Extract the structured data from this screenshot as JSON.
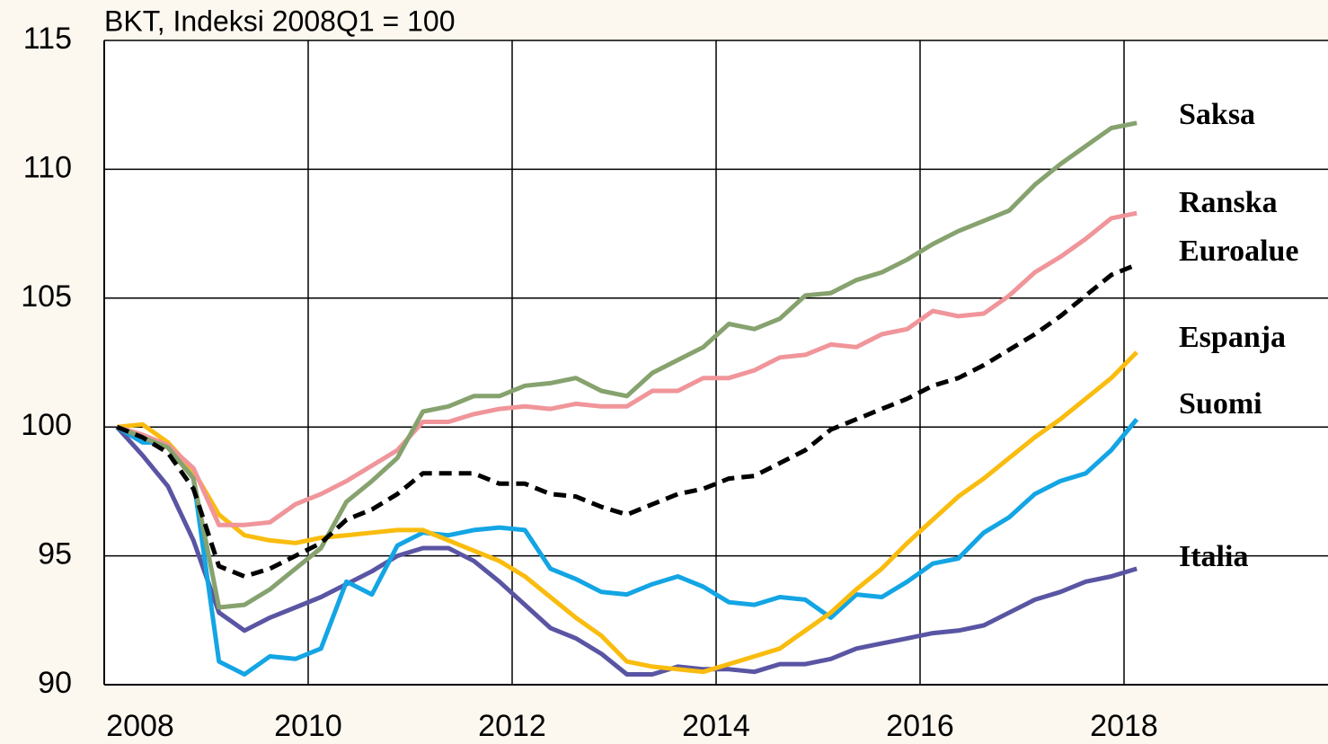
{
  "chart_data": {
    "type": "line",
    "title": "BKT, Indeksi 2008Q1 = 100",
    "x": [
      2008.125,
      2008.375,
      2008.625,
      2008.875,
      2009.125,
      2009.375,
      2009.625,
      2009.875,
      2010.125,
      2010.375,
      2010.625,
      2010.875,
      2011.125,
      2011.375,
      2011.625,
      2011.875,
      2012.125,
      2012.375,
      2012.625,
      2012.875,
      2013.125,
      2013.375,
      2013.625,
      2013.875,
      2014.125,
      2014.375,
      2014.625,
      2014.875,
      2015.125,
      2015.375,
      2015.625,
      2015.875,
      2016.125,
      2016.375,
      2016.625,
      2016.875,
      2017.125,
      2017.375,
      2017.625,
      2017.875,
      2018.125
    ],
    "series": [
      {
        "name": "Italia",
        "color": "#5a55a3",
        "values": [
          100,
          98.9,
          97.7,
          95.6,
          92.8,
          92.1,
          92.6,
          93.0,
          93.4,
          93.9,
          94.4,
          95.0,
          95.3,
          95.3,
          94.8,
          94.0,
          93.1,
          92.2,
          91.8,
          91.2,
          90.4,
          90.4,
          90.7,
          90.6,
          90.6,
          90.5,
          90.8,
          90.8,
          91.0,
          91.4,
          91.6,
          91.8,
          92.0,
          92.1,
          92.3,
          92.8,
          93.3,
          93.6,
          94.0,
          94.2,
          94.5
        ]
      },
      {
        "name": "Suomi",
        "color": "#13a5e4",
        "values": [
          100,
          99.4,
          99.4,
          98.0,
          90.9,
          90.4,
          91.1,
          91.0,
          91.4,
          94.0,
          93.5,
          95.4,
          95.9,
          95.8,
          96.0,
          96.1,
          96.0,
          94.5,
          94.1,
          93.6,
          93.5,
          93.9,
          94.2,
          93.8,
          93.2,
          93.1,
          93.4,
          93.3,
          92.6,
          93.5,
          93.4,
          94.0,
          94.7,
          94.9,
          95.9,
          96.5,
          97.4,
          97.9,
          98.2,
          99.1,
          100.3
        ]
      },
      {
        "name": "Espanja",
        "color": "#f9bc0f",
        "values": [
          100,
          100.1,
          99.4,
          98.3,
          96.6,
          95.8,
          95.6,
          95.5,
          95.7,
          95.8,
          95.9,
          96.0,
          96.0,
          95.6,
          95.2,
          94.8,
          94.2,
          93.4,
          92.6,
          91.9,
          90.9,
          90.7,
          90.6,
          90.5,
          90.8,
          91.1,
          91.4,
          92.1,
          92.8,
          93.7,
          94.5,
          95.5,
          96.4,
          97.3,
          98.0,
          98.8,
          99.6,
          100.3,
          101.1,
          101.9,
          102.9
        ]
      },
      {
        "name": "Ranska",
        "color": "#f0959a",
        "values": [
          100,
          99.7,
          99.3,
          98.4,
          96.2,
          96.2,
          96.3,
          97.0,
          97.4,
          97.9,
          98.5,
          99.1,
          100.2,
          100.2,
          100.5,
          100.7,
          100.8,
          100.7,
          100.9,
          100.8,
          100.8,
          101.4,
          101.4,
          101.9,
          101.9,
          102.2,
          102.7,
          102.8,
          103.2,
          103.1,
          103.6,
          103.8,
          104.5,
          104.3,
          104.4,
          105.1,
          106.0,
          106.6,
          107.3,
          108.1,
          108.3
        ]
      },
      {
        "name": "Saksa",
        "color": "#86a26e",
        "values": [
          100,
          99.6,
          99.2,
          98.0,
          93.0,
          93.1,
          93.7,
          94.5,
          95.3,
          97.1,
          97.9,
          98.8,
          100.6,
          100.8,
          101.2,
          101.2,
          101.6,
          101.7,
          101.9,
          101.4,
          101.2,
          102.1,
          102.6,
          103.1,
          104.0,
          103.8,
          104.2,
          105.1,
          105.2,
          105.7,
          106.0,
          106.5,
          107.1,
          107.6,
          108.0,
          108.4,
          109.4,
          110.2,
          110.9,
          111.6,
          111.8
        ]
      },
      {
        "name": "Euroalue",
        "color": "#000000",
        "dashed": true,
        "values": [
          100,
          99.6,
          99.0,
          97.6,
          94.6,
          94.2,
          94.5,
          95.0,
          95.5,
          96.4,
          96.8,
          97.4,
          98.2,
          98.2,
          98.2,
          97.8,
          97.8,
          97.4,
          97.3,
          96.9,
          96.6,
          97.0,
          97.4,
          97.6,
          98.0,
          98.1,
          98.6,
          99.1,
          99.9,
          100.3,
          100.7,
          101.1,
          101.6,
          101.9,
          102.4,
          103.0,
          103.6,
          104.3,
          105.1,
          105.9,
          106.3
        ]
      }
    ],
    "xlim": [
      2008,
      2020
    ],
    "xticks": [
      2008,
      2010,
      2012,
      2014,
      2016,
      2018
    ],
    "ylim": [
      90,
      115
    ],
    "yticks": [
      90,
      95,
      100,
      105,
      110,
      115
    ],
    "grid": true
  }
}
